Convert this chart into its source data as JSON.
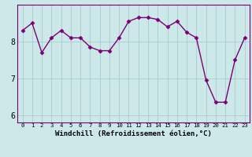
{
  "x": [
    0,
    1,
    2,
    3,
    4,
    5,
    6,
    7,
    8,
    9,
    10,
    11,
    12,
    13,
    14,
    15,
    16,
    17,
    18,
    19,
    20,
    21,
    22,
    23
  ],
  "y": [
    8.3,
    8.5,
    7.7,
    8.1,
    8.3,
    8.1,
    8.1,
    7.85,
    7.75,
    7.75,
    8.1,
    8.55,
    8.65,
    8.65,
    8.6,
    8.4,
    8.55,
    8.25,
    8.1,
    6.95,
    6.35,
    6.35,
    7.5,
    8.1
  ],
  "line_color": "#7b0077",
  "marker": "D",
  "marker_size": 2.5,
  "linewidth": 1.0,
  "xlabel": "Windchill (Refroidissement éolien,°C)",
  "ylim": [
    5.8,
    9.0
  ],
  "yticks": [
    6,
    7,
    8
  ],
  "bg_color": "#cce8e8",
  "grid_color": "#aacccc",
  "spine_color": "#7b0077",
  "xtick_fontsize": 5.2,
  "ytick_fontsize": 7.0,
  "xlabel_fontsize": 6.5
}
